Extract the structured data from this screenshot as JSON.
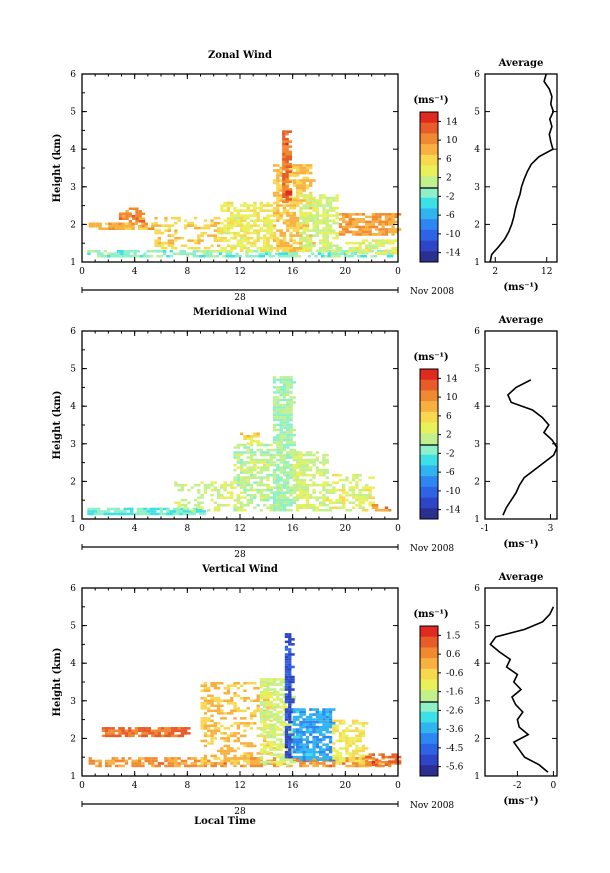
{
  "colors": {
    "scale": [
      "#2b2f8f",
      "#2f45c8",
      "#2f63e6",
      "#2e87f0",
      "#2fb4f0",
      "#3ee0e8",
      "#8ff0c8",
      "#c2f08c",
      "#e8f05a",
      "#f8d850",
      "#f8b040",
      "#f08a30",
      "#e85c2a",
      "#e02a20"
    ],
    "axis": "#000000",
    "profile_line": "#000000"
  },
  "chart_data": [
    {
      "type": "heatmap",
      "id": "zonal",
      "title": "Zonal Wind",
      "ylabel": "Height (km)",
      "xlabel": "",
      "xticks": [
        "0",
        "4",
        "8",
        "12",
        "16",
        "20",
        "0"
      ],
      "xlim": [
        0,
        24
      ],
      "ylim": [
        1,
        6
      ],
      "yticks": [
        "1",
        "2",
        "3",
        "4",
        "5",
        "6"
      ],
      "date_label": "28",
      "month_label": "Nov 2008",
      "colorbar": {
        "unit": "(ms⁻¹)",
        "ticks": [
          "14",
          "10",
          "6",
          "2",
          "-2",
          "-6",
          "-10",
          "-14"
        ],
        "range": [
          -16,
          16
        ]
      },
      "cells": [
        {
          "x0": 0.4,
          "x1": 23.6,
          "y0": 1.15,
          "y1": 1.32,
          "value": -1,
          "density": 0.55
        },
        {
          "x0": 0.5,
          "x1": 5.5,
          "y0": 1.9,
          "y1": 2.05,
          "value": 8,
          "density": 0.7
        },
        {
          "x0": 2.8,
          "x1": 4.5,
          "y0": 2.1,
          "y1": 2.45,
          "value": 10,
          "density": 0.5
        },
        {
          "x0": 5.5,
          "x1": 10.5,
          "y0": 1.35,
          "y1": 2.2,
          "value": 6,
          "density": 0.35
        },
        {
          "x0": 10.5,
          "x1": 14.5,
          "y0": 1.3,
          "y1": 2.6,
          "value": 4,
          "density": 0.55
        },
        {
          "x0": 14.5,
          "x1": 17.5,
          "y0": 1.3,
          "y1": 3.6,
          "value": 7,
          "density": 0.6
        },
        {
          "x0": 15.2,
          "x1": 15.5,
          "y0": 2.6,
          "y1": 4.5,
          "value": 12,
          "density": 0.9
        },
        {
          "x0": 16.5,
          "x1": 19.5,
          "y0": 1.3,
          "y1": 2.8,
          "value": 2,
          "density": 0.6
        },
        {
          "x0": 19.5,
          "x1": 24.0,
          "y0": 1.7,
          "y1": 2.3,
          "value": 9,
          "density": 0.7
        },
        {
          "x0": 20.0,
          "x1": 24.0,
          "y0": 1.25,
          "y1": 1.6,
          "value": 3,
          "density": 0.5
        }
      ],
      "profile": {
        "title": "Average",
        "xlim": [
          0,
          14
        ],
        "xticks": [
          "2",
          "12"
        ],
        "xunit": "(ms⁻¹)",
        "heights": [
          1.0,
          1.2,
          1.4,
          1.6,
          1.8,
          2.0,
          2.2,
          2.4,
          2.6,
          2.8,
          3.0,
          3.2,
          3.4,
          3.6,
          3.8,
          4.0,
          4.2,
          4.4,
          4.6,
          4.8,
          5.0,
          5.2,
          5.4,
          5.6,
          5.8,
          6.0
        ],
        "values": [
          1.0,
          1.3,
          2.6,
          3.8,
          4.6,
          5.2,
          5.6,
          5.9,
          6.3,
          6.8,
          7.1,
          7.6,
          8.2,
          9.0,
          10.5,
          13.2,
          12.8,
          12.5,
          13.0,
          12.6,
          13.3,
          12.8,
          13.0,
          12.5,
          11.5,
          11.9
        ]
      }
    },
    {
      "type": "heatmap",
      "id": "meridional",
      "title": "Meridional Wind",
      "ylabel": "Height (km)",
      "xlabel": "",
      "xticks": [
        "0",
        "4",
        "8",
        "12",
        "16",
        "20",
        "0"
      ],
      "xlim": [
        0,
        24
      ],
      "ylim": [
        1,
        6
      ],
      "yticks": [
        "1",
        "2",
        "3",
        "4",
        "5",
        "6"
      ],
      "date_label": "28",
      "month_label": "Nov 2008",
      "colorbar": {
        "unit": "(ms⁻¹)",
        "ticks": [
          "14",
          "10",
          "6",
          "2",
          "-2",
          "-6",
          "-10",
          "-14"
        ],
        "range": [
          -16,
          16
        ]
      },
      "cells": [
        {
          "x0": 0.4,
          "x1": 9.0,
          "y0": 1.15,
          "y1": 1.3,
          "value": -2,
          "density": 0.8
        },
        {
          "x0": 7.0,
          "x1": 12.0,
          "y0": 1.2,
          "y1": 2.0,
          "value": 2,
          "density": 0.35
        },
        {
          "x0": 11.5,
          "x1": 14.5,
          "y0": 1.2,
          "y1": 3.0,
          "value": 1,
          "density": 0.5
        },
        {
          "x0": 14.5,
          "x1": 16.0,
          "y0": 1.2,
          "y1": 4.8,
          "value": 0,
          "density": 0.75
        },
        {
          "x0": 16.0,
          "x1": 18.5,
          "y0": 1.2,
          "y1": 2.8,
          "value": 2,
          "density": 0.55
        },
        {
          "x0": 18.5,
          "x1": 22.0,
          "y0": 1.2,
          "y1": 2.2,
          "value": 3,
          "density": 0.4
        },
        {
          "x0": 12.0,
          "x1": 13.5,
          "y0": 3.0,
          "y1": 3.3,
          "value": 6,
          "density": 0.5
        },
        {
          "x0": 22.0,
          "x1": 23.5,
          "y0": 1.2,
          "y1": 1.4,
          "value": 10,
          "density": 0.5
        }
      ],
      "profile": {
        "title": "Average",
        "xlim": [
          -1,
          3.4
        ],
        "xticks": [
          "-1",
          "3"
        ],
        "xunit": "(ms⁻¹)",
        "heights": [
          1.1,
          1.3,
          1.5,
          1.7,
          1.9,
          2.1,
          2.3,
          2.5,
          2.7,
          2.9,
          3.1,
          3.3,
          3.5,
          3.7,
          3.9,
          4.1,
          4.3,
          4.5,
          4.7
        ],
        "values": [
          0.1,
          0.3,
          0.6,
          0.9,
          1.1,
          1.4,
          2.0,
          2.6,
          3.2,
          3.4,
          3.1,
          2.6,
          2.9,
          2.5,
          1.9,
          0.6,
          0.4,
          0.9,
          1.8
        ]
      }
    },
    {
      "type": "heatmap",
      "id": "vertical",
      "title": "Vertical Wind",
      "ylabel": "Height (km)",
      "xlabel": "Local Time",
      "xticks": [
        "0",
        "4",
        "8",
        "12",
        "16",
        "20",
        "0"
      ],
      "xlim": [
        0,
        24
      ],
      "ylim": [
        1,
        6
      ],
      "yticks": [
        "1",
        "2",
        "3",
        "4",
        "5",
        "6"
      ],
      "date_label": "28",
      "month_label": "Nov 2008",
      "colorbar": {
        "unit": "(ms⁻¹)",
        "ticks": [
          "1.5",
          "0.6",
          "-0.6",
          "-1.6",
          "-2.6",
          "-3.6",
          "-4.5",
          "-5.6"
        ],
        "range": [
          -6.0,
          2.0
        ]
      },
      "cells": [
        {
          "x0": 0.5,
          "x1": 24.0,
          "y0": 1.25,
          "y1": 1.5,
          "value": 0.4,
          "density": 0.55
        },
        {
          "x0": 1.5,
          "x1": 7.8,
          "y0": 2.05,
          "y1": 2.3,
          "value": 0.9,
          "density": 0.75
        },
        {
          "x0": 9.0,
          "x1": 14.5,
          "y0": 1.3,
          "y1": 3.5,
          "value": -0.2,
          "density": 0.35
        },
        {
          "x0": 13.5,
          "x1": 16.0,
          "y0": 1.3,
          "y1": 3.6,
          "value": -1.5,
          "density": 0.55
        },
        {
          "x0": 15.4,
          "x1": 15.8,
          "y0": 1.5,
          "y1": 4.8,
          "value": -5.0,
          "density": 0.9
        },
        {
          "x0": 16.0,
          "x1": 19.0,
          "y0": 1.4,
          "y1": 2.8,
          "value": -3.6,
          "density": 0.7
        },
        {
          "x0": 19.0,
          "x1": 21.5,
          "y0": 1.3,
          "y1": 2.5,
          "value": -0.8,
          "density": 0.5
        },
        {
          "x0": 21.5,
          "x1": 24.0,
          "y0": 1.3,
          "y1": 1.6,
          "value": 1.0,
          "density": 0.6
        }
      ],
      "profile": {
        "title": "Average",
        "xlim": [
          -3.8,
          0.2
        ],
        "xticks": [
          "-2",
          "0"
        ],
        "xunit": "(ms⁻¹)",
        "heights": [
          1.1,
          1.3,
          1.5,
          1.7,
          1.9,
          2.1,
          2.3,
          2.5,
          2.7,
          2.9,
          3.1,
          3.3,
          3.5,
          3.7,
          3.9,
          4.1,
          4.3,
          4.5,
          4.7,
          4.9,
          5.1,
          5.3,
          5.5
        ],
        "values": [
          -0.3,
          -0.8,
          -1.6,
          -1.9,
          -2.2,
          -1.4,
          -1.9,
          -2.0,
          -1.7,
          -2.1,
          -2.3,
          -1.8,
          -2.2,
          -2.0,
          -2.6,
          -2.4,
          -3.0,
          -3.5,
          -3.2,
          -1.6,
          -0.6,
          -0.2,
          0.0
        ]
      }
    }
  ]
}
